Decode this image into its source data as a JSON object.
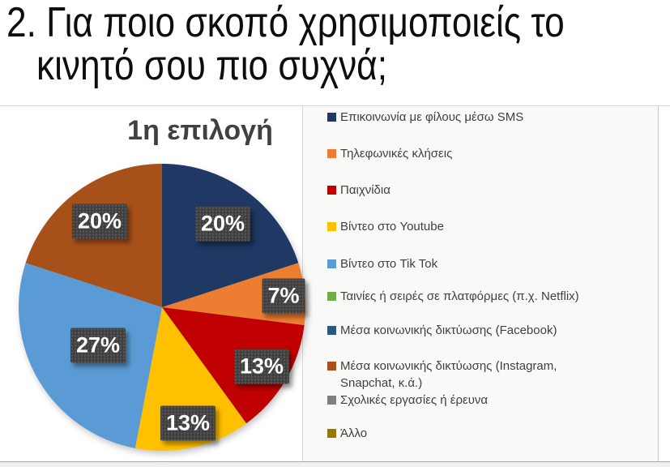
{
  "slide": {
    "title_line1": "2. Για ποιο σκοπό χρησιμοποιείς το",
    "title_line2": "κινητό σου πιο συχνά;"
  },
  "chart_data": {
    "type": "pie",
    "title": "1η επιλογή",
    "unit": "%",
    "legend_position": "right",
    "categories": [
      "Επικοινωνία με φίλους μέσω SMS",
      "Τηλεφωνικές κλήσεις",
      "Παιχνίδια",
      "Βίντεο στο Youtube",
      "Βίντεο στο Tik Tok",
      "Ταινίες ή σειρές σε πλατφόρμες (π.χ. Netflix)",
      "Μέσα κοινωνικής δικτύωσης (Facebook)",
      "Μέσα κοινωνικής δικτύωσης (Instagram, Snapchat, κ.ά.)",
      "Σχολικές εργασίες ή έρευνα",
      "Άλλο"
    ],
    "legend_lines": [
      [
        "Επικοινωνία με φίλους μέσω SMS"
      ],
      [
        "Τηλεφωνικές κλήσεις"
      ],
      [
        "Παιχνίδια"
      ],
      [
        "Βίντεο στο Youtube"
      ],
      [
        "Βίντεο στο Tik Tok"
      ],
      [
        "Ταινίες ή σειρές σε πλατφόρμες (π.χ. Netflix)"
      ],
      [
        "Μέσα κοινωνικής δικτύωσης (Facebook)"
      ],
      [
        "Μέσα κοινωνικής δικτύωσης (Instagram,",
        "Snapchat, κ.ά.)"
      ],
      [
        "Σχολικές εργασίες ή έρευνα"
      ],
      [
        "Άλλο"
      ]
    ],
    "values": [
      20,
      7,
      13,
      13,
      27,
      0,
      0,
      20,
      0,
      0
    ],
    "data_labels": [
      "20%",
      "7%",
      "13%",
      "13%",
      "27%",
      "20%"
    ],
    "colors": [
      "#1F3864",
      "#ED7D31",
      "#C00000",
      "#FFC000",
      "#5B9BD5",
      "#70AD47",
      "#2A5784",
      "#A8501A",
      "#7F7F7F",
      "#9A7800"
    ],
    "label_text_color": "#FFFFFF",
    "label_box_color": "#3F3F3F",
    "title_color": "#404040",
    "legend_text_color": "#404040",
    "label_radius_factors": [
      0.72,
      0.85,
      0.81,
      0.83,
      0.52,
      0.74
    ]
  }
}
